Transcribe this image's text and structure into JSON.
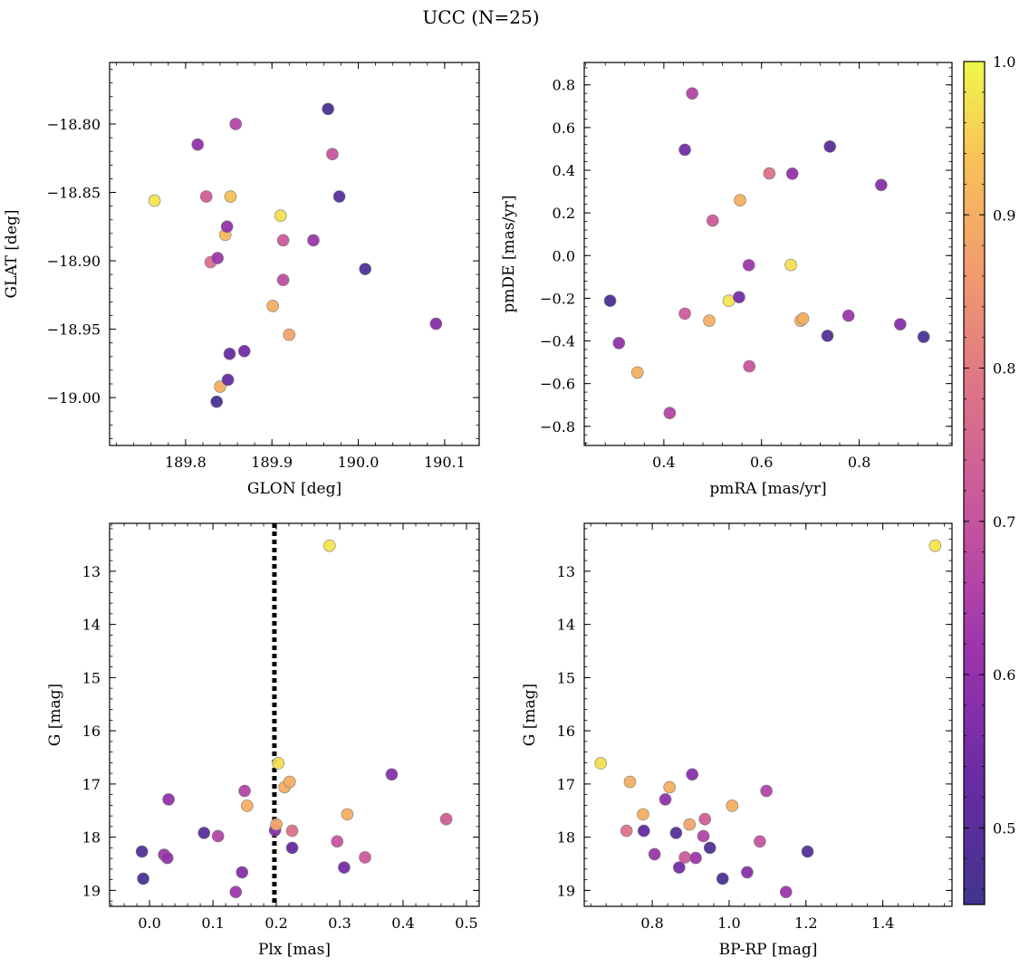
{
  "figure": {
    "title": "UCC (N=25)"
  },
  "colorbar": {
    "min": 0.45,
    "max": 1.0,
    "ticks": [
      0.5,
      0.6,
      0.7,
      0.8,
      0.9,
      1.0
    ],
    "tick_labels": [
      "0.5",
      "0.6",
      "0.7",
      "0.8",
      "0.9",
      "1.0"
    ],
    "colormap": "plasma"
  },
  "chart_data": [
    {
      "type": "scatter",
      "id": "sky",
      "xlabel": "GLON [deg]",
      "ylabel": "GLAT [deg]",
      "xlim": [
        189.712,
        190.14
      ],
      "ylim": [
        -19.035,
        -18.755
      ],
      "xticks": [
        189.8,
        189.9,
        190.0,
        190.1
      ],
      "xtick_labels": [
        "189.8",
        "189.9",
        "190.0",
        "190.1"
      ],
      "yticks": [
        -18.8,
        -18.85,
        -18.9,
        -18.95,
        -19.0
      ],
      "ytick_labels": [
        "−18.80",
        "−18.85",
        "−18.90",
        "−18.95",
        "−19.00"
      ],
      "points": [
        {
          "x": 189.764,
          "y": -18.856,
          "c": 0.98
        },
        {
          "x": 189.814,
          "y": -18.815,
          "c": 0.6
        },
        {
          "x": 189.824,
          "y": -18.853,
          "c": 0.73
        },
        {
          "x": 189.829,
          "y": -18.901,
          "c": 0.78
        },
        {
          "x": 189.836,
          "y": -19.003,
          "c": 0.47
        },
        {
          "x": 189.837,
          "y": -18.898,
          "c": 0.62
        },
        {
          "x": 189.84,
          "y": -18.992,
          "c": 0.9
        },
        {
          "x": 189.846,
          "y": -18.881,
          "c": 0.92
        },
        {
          "x": 189.848,
          "y": -18.875,
          "c": 0.6
        },
        {
          "x": 189.849,
          "y": -18.987,
          "c": 0.52
        },
        {
          "x": 189.851,
          "y": -18.968,
          "c": 0.52
        },
        {
          "x": 189.852,
          "y": -18.853,
          "c": 0.93
        },
        {
          "x": 189.858,
          "y": -18.8,
          "c": 0.66
        },
        {
          "x": 189.868,
          "y": -18.966,
          "c": 0.55
        },
        {
          "x": 189.901,
          "y": -18.933,
          "c": 0.9
        },
        {
          "x": 189.91,
          "y": -18.867,
          "c": 0.97
        },
        {
          "x": 189.913,
          "y": -18.885,
          "c": 0.72
        },
        {
          "x": 189.913,
          "y": -18.914,
          "c": 0.68
        },
        {
          "x": 189.92,
          "y": -18.954,
          "c": 0.88
        },
        {
          "x": 189.948,
          "y": -18.885,
          "c": 0.62
        },
        {
          "x": 189.965,
          "y": -18.789,
          "c": 0.47
        },
        {
          "x": 189.97,
          "y": -18.822,
          "c": 0.7
        },
        {
          "x": 189.978,
          "y": -18.853,
          "c": 0.49
        },
        {
          "x": 190.008,
          "y": -18.906,
          "c": 0.48
        },
        {
          "x": 190.09,
          "y": -18.946,
          "c": 0.58
        }
      ]
    },
    {
      "type": "scatter",
      "id": "pm",
      "xlabel": "pmRA [mas/yr]",
      "ylabel": "pmDE [mas/yr]",
      "xlim": [
        0.237,
        0.99
      ],
      "ylim": [
        -0.89,
        0.905
      ],
      "xticks": [
        0.4,
        0.6,
        0.8
      ],
      "xtick_labels": [
        "0.4",
        "0.6",
        "0.8"
      ],
      "yticks": [
        0.8,
        0.6,
        0.4,
        0.2,
        0.0,
        -0.2,
        -0.4,
        -0.6,
        -0.8
      ],
      "ytick_labels": [
        "0.8",
        "0.6",
        "0.4",
        "0.2",
        "0.0",
        "−0.2",
        "−0.4",
        "−0.6",
        "−0.8"
      ],
      "points": [
        {
          "x": 0.29,
          "y": -0.212,
          "c": 0.47
        },
        {
          "x": 0.308,
          "y": -0.41,
          "c": 0.6
        },
        {
          "x": 0.346,
          "y": -0.548,
          "c": 0.9
        },
        {
          "x": 0.412,
          "y": -0.738,
          "c": 0.66
        },
        {
          "x": 0.443,
          "y": 0.496,
          "c": 0.55
        },
        {
          "x": 0.443,
          "y": -0.272,
          "c": 0.72
        },
        {
          "x": 0.458,
          "y": 0.76,
          "c": 0.66
        },
        {
          "x": 0.493,
          "y": -0.305,
          "c": 0.9
        },
        {
          "x": 0.5,
          "y": 0.164,
          "c": 0.72
        },
        {
          "x": 0.533,
          "y": -0.212,
          "c": 0.98
        },
        {
          "x": 0.554,
          "y": -0.195,
          "c": 0.55
        },
        {
          "x": 0.556,
          "y": 0.259,
          "c": 0.9
        },
        {
          "x": 0.574,
          "y": -0.045,
          "c": 0.62
        },
        {
          "x": 0.575,
          "y": -0.519,
          "c": 0.7
        },
        {
          "x": 0.616,
          "y": 0.385,
          "c": 0.78
        },
        {
          "x": 0.66,
          "y": -0.044,
          "c": 0.97
        },
        {
          "x": 0.663,
          "y": 0.384,
          "c": 0.6
        },
        {
          "x": 0.68,
          "y": -0.305,
          "c": 0.9
        },
        {
          "x": 0.685,
          "y": -0.295,
          "c": 0.9
        },
        {
          "x": 0.735,
          "y": -0.376,
          "c": 0.48
        },
        {
          "x": 0.74,
          "y": 0.511,
          "c": 0.49
        },
        {
          "x": 0.778,
          "y": -0.282,
          "c": 0.62
        },
        {
          "x": 0.845,
          "y": 0.331,
          "c": 0.58
        },
        {
          "x": 0.884,
          "y": -0.322,
          "c": 0.58
        },
        {
          "x": 0.932,
          "y": -0.381,
          "c": 0.47
        }
      ]
    },
    {
      "type": "scatter",
      "id": "plx",
      "xlabel": "Plx [mas]",
      "ylabel": "G [mag]",
      "xlim": [
        -0.063,
        0.52
      ],
      "ylim": [
        19.3,
        12.1
      ],
      "y_inverted": true,
      "vline": {
        "x": 0.197,
        "style": "dotted"
      },
      "xticks": [
        0.0,
        0.1,
        0.2,
        0.3,
        0.4,
        0.5
      ],
      "xtick_labels": [
        "0.0",
        "0.1",
        "0.2",
        "0.3",
        "0.4",
        "0.5"
      ],
      "yticks": [
        13,
        14,
        15,
        16,
        17,
        18,
        19
      ],
      "ytick_labels": [
        "13",
        "14",
        "15",
        "16",
        "17",
        "18",
        "19"
      ],
      "points": [
        {
          "x": -0.012,
          "y": 18.27,
          "c": 0.48
        },
        {
          "x": -0.01,
          "y": 18.78,
          "c": 0.47
        },
        {
          "x": 0.023,
          "y": 18.33,
          "c": 0.62
        },
        {
          "x": 0.028,
          "y": 18.39,
          "c": 0.6
        },
        {
          "x": 0.03,
          "y": 17.29,
          "c": 0.6
        },
        {
          "x": 0.086,
          "y": 17.92,
          "c": 0.49
        },
        {
          "x": 0.108,
          "y": 17.98,
          "c": 0.66
        },
        {
          "x": 0.136,
          "y": 19.03,
          "c": 0.62
        },
        {
          "x": 0.146,
          "y": 18.66,
          "c": 0.58
        },
        {
          "x": 0.15,
          "y": 17.13,
          "c": 0.66
        },
        {
          "x": 0.154,
          "y": 17.41,
          "c": 0.9
        },
        {
          "x": 0.198,
          "y": 17.87,
          "c": 0.58
        },
        {
          "x": 0.2,
          "y": 17.76,
          "c": 0.88
        },
        {
          "x": 0.203,
          "y": 16.61,
          "c": 0.97
        },
        {
          "x": 0.213,
          "y": 17.06,
          "c": 0.9
        },
        {
          "x": 0.221,
          "y": 16.96,
          "c": 0.9
        },
        {
          "x": 0.225,
          "y": 17.88,
          "c": 0.78
        },
        {
          "x": 0.225,
          "y": 18.2,
          "c": 0.52
        },
        {
          "x": 0.284,
          "y": 12.52,
          "c": 0.98
        },
        {
          "x": 0.296,
          "y": 18.08,
          "c": 0.7
        },
        {
          "x": 0.307,
          "y": 18.57,
          "c": 0.55
        },
        {
          "x": 0.312,
          "y": 17.57,
          "c": 0.9
        },
        {
          "x": 0.34,
          "y": 18.38,
          "c": 0.72
        },
        {
          "x": 0.382,
          "y": 16.82,
          "c": 0.58
        },
        {
          "x": 0.468,
          "y": 17.66,
          "c": 0.73
        }
      ]
    },
    {
      "type": "scatter",
      "id": "cmd",
      "xlabel": "BP-RP [mag]",
      "ylabel": "G [mag]",
      "xlim": [
        0.623,
        1.58
      ],
      "ylim": [
        19.3,
        12.1
      ],
      "y_inverted": true,
      "xticks": [
        0.8,
        1.0,
        1.2,
        1.4
      ],
      "xtick_labels": [
        "0.8",
        "1.0",
        "1.2",
        "1.4"
      ],
      "yticks": [
        13,
        14,
        15,
        16,
        17,
        18,
        19
      ],
      "ytick_labels": [
        "13",
        "14",
        "15",
        "16",
        "17",
        "18",
        "19"
      ],
      "points": [
        {
          "x": 0.666,
          "y": 16.61,
          "c": 0.97
        },
        {
          "x": 0.733,
          "y": 17.88,
          "c": 0.78
        },
        {
          "x": 0.742,
          "y": 16.96,
          "c": 0.9
        },
        {
          "x": 0.776,
          "y": 17.57,
          "c": 0.9
        },
        {
          "x": 0.778,
          "y": 17.88,
          "c": 0.52
        },
        {
          "x": 0.806,
          "y": 18.32,
          "c": 0.62
        },
        {
          "x": 0.834,
          "y": 17.29,
          "c": 0.6
        },
        {
          "x": 0.845,
          "y": 17.06,
          "c": 0.9
        },
        {
          "x": 0.862,
          "y": 17.92,
          "c": 0.49
        },
        {
          "x": 0.87,
          "y": 18.57,
          "c": 0.55
        },
        {
          "x": 0.885,
          "y": 18.38,
          "c": 0.72
        },
        {
          "x": 0.897,
          "y": 17.76,
          "c": 0.88
        },
        {
          "x": 0.904,
          "y": 16.82,
          "c": 0.58
        },
        {
          "x": 0.913,
          "y": 18.39,
          "c": 0.62
        },
        {
          "x": 0.933,
          "y": 17.98,
          "c": 0.66
        },
        {
          "x": 0.937,
          "y": 17.66,
          "c": 0.73
        },
        {
          "x": 0.95,
          "y": 18.2,
          "c": 0.48
        },
        {
          "x": 0.983,
          "y": 18.78,
          "c": 0.47
        },
        {
          "x": 1.008,
          "y": 17.41,
          "c": 0.9
        },
        {
          "x": 1.047,
          "y": 18.66,
          "c": 0.58
        },
        {
          "x": 1.08,
          "y": 18.08,
          "c": 0.7
        },
        {
          "x": 1.097,
          "y": 17.13,
          "c": 0.66
        },
        {
          "x": 1.148,
          "y": 19.03,
          "c": 0.62
        },
        {
          "x": 1.204,
          "y": 18.27,
          "c": 0.48
        },
        {
          "x": 1.536,
          "y": 12.52,
          "c": 0.98
        }
      ]
    }
  ]
}
